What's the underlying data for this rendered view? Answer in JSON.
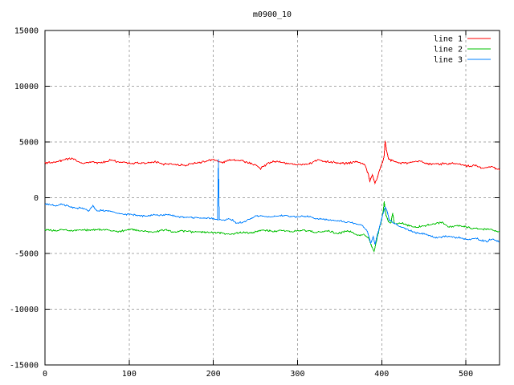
{
  "chart_data": {
    "type": "line",
    "title": "m0900_10",
    "xlabel": "",
    "ylabel": "",
    "xlim": [
      0,
      540
    ],
    "ylim": [
      -15000,
      15000
    ],
    "x_ticks": [
      0,
      100,
      200,
      300,
      400,
      500
    ],
    "y_ticks": [
      -15000,
      -10000,
      -5000,
      0,
      5000,
      10000,
      15000
    ],
    "grid": true,
    "legend_position": "top-right-inside",
    "background": "#ffffff",
    "frame_color": "#000000",
    "grid_color": "#a8a8a8",
    "noise_seed": 900010,
    "series": [
      {
        "name": "line 1",
        "color": "#ff0000",
        "fast_noise": 105,
        "slow_noise": 160,
        "slow_period": 13,
        "keypoints": [
          [
            0,
            3050
          ],
          [
            12,
            3150
          ],
          [
            25,
            3300
          ],
          [
            35,
            3500
          ],
          [
            45,
            3150
          ],
          [
            55,
            3250
          ],
          [
            65,
            3100
          ],
          [
            78,
            3300
          ],
          [
            90,
            3150
          ],
          [
            105,
            3200
          ],
          [
            120,
            3100
          ],
          [
            135,
            3150
          ],
          [
            150,
            3100
          ],
          [
            165,
            3000
          ],
          [
            178,
            3250
          ],
          [
            192,
            3300
          ],
          [
            200,
            3400
          ],
          [
            210,
            3100
          ],
          [
            222,
            3250
          ],
          [
            235,
            3300
          ],
          [
            248,
            2950
          ],
          [
            256,
            2650
          ],
          [
            264,
            3050
          ],
          [
            275,
            3150
          ],
          [
            288,
            3050
          ],
          [
            300,
            2900
          ],
          [
            312,
            3000
          ],
          [
            325,
            3250
          ],
          [
            338,
            3300
          ],
          [
            350,
            3150
          ],
          [
            362,
            3050
          ],
          [
            372,
            3200
          ],
          [
            380,
            3000
          ],
          [
            384,
            2200
          ],
          [
            386,
            1500
          ],
          [
            389,
            2100
          ],
          [
            392,
            1300
          ],
          [
            395,
            1900
          ],
          [
            398,
            2700
          ],
          [
            401,
            3300
          ],
          [
            403,
            3900
          ],
          [
            404,
            5200
          ],
          [
            406,
            4300
          ],
          [
            408,
            3600
          ],
          [
            411,
            3250
          ],
          [
            416,
            3100
          ],
          [
            424,
            2950
          ],
          [
            432,
            3000
          ],
          [
            440,
            3100
          ],
          [
            448,
            3150
          ],
          [
            456,
            2950
          ],
          [
            464,
            3100
          ],
          [
            472,
            3050
          ],
          [
            480,
            2900
          ],
          [
            488,
            3000
          ],
          [
            496,
            2950
          ],
          [
            504,
            2800
          ],
          [
            512,
            2900
          ],
          [
            520,
            2750
          ],
          [
            528,
            2800
          ],
          [
            534,
            2650
          ],
          [
            540,
            2550
          ]
        ]
      },
      {
        "name": "line 2",
        "color": "#00c000",
        "fast_noise": 95,
        "slow_noise": 120,
        "slow_period": 12,
        "keypoints": [
          [
            0,
            -2950
          ],
          [
            15,
            -2850
          ],
          [
            30,
            -2950
          ],
          [
            45,
            -2800
          ],
          [
            60,
            -2900
          ],
          [
            75,
            -2850
          ],
          [
            90,
            -3000
          ],
          [
            105,
            -2900
          ],
          [
            120,
            -3050
          ],
          [
            135,
            -2950
          ],
          [
            150,
            -3000
          ],
          [
            162,
            -2900
          ],
          [
            175,
            -3050
          ],
          [
            190,
            -3000
          ],
          [
            205,
            -3100
          ],
          [
            220,
            -3150
          ],
          [
            232,
            -3050
          ],
          [
            245,
            -3150
          ],
          [
            258,
            -3000
          ],
          [
            270,
            -3100
          ],
          [
            282,
            -3000
          ],
          [
            295,
            -3100
          ],
          [
            308,
            -3000
          ],
          [
            320,
            -3080
          ],
          [
            333,
            -2950
          ],
          [
            346,
            -3100
          ],
          [
            358,
            -3050
          ],
          [
            370,
            -3200
          ],
          [
            379,
            -3350
          ],
          [
            385,
            -3800
          ],
          [
            388,
            -4400
          ],
          [
            391,
            -4950
          ],
          [
            394,
            -3900
          ],
          [
            397,
            -2950
          ],
          [
            400,
            -2100
          ],
          [
            402,
            -1200
          ],
          [
            403,
            -480
          ],
          [
            405,
            -1600
          ],
          [
            408,
            -2250
          ],
          [
            411,
            -2400
          ],
          [
            413,
            -1450
          ],
          [
            415,
            -2400
          ],
          [
            425,
            -2350
          ],
          [
            438,
            -2650
          ],
          [
            452,
            -2500
          ],
          [
            465,
            -2350
          ],
          [
            472,
            -2250
          ],
          [
            480,
            -2650
          ],
          [
            492,
            -2550
          ],
          [
            505,
            -2750
          ],
          [
            518,
            -2900
          ],
          [
            530,
            -2950
          ],
          [
            540,
            -3100
          ]
        ]
      },
      {
        "name": "line 3",
        "color": "#0080ff",
        "fast_noise": 90,
        "slow_noise": 130,
        "slow_period": 13,
        "keypoints": [
          [
            0,
            -650
          ],
          [
            12,
            -850
          ],
          [
            20,
            -700
          ],
          [
            30,
            -950
          ],
          [
            42,
            -850
          ],
          [
            52,
            -1150
          ],
          [
            57,
            -750
          ],
          [
            62,
            -1300
          ],
          [
            75,
            -1150
          ],
          [
            90,
            -1350
          ],
          [
            105,
            -1500
          ],
          [
            120,
            -1600
          ],
          [
            135,
            -1700
          ],
          [
            150,
            -1600
          ],
          [
            165,
            -1800
          ],
          [
            180,
            -1850
          ],
          [
            195,
            -1900
          ],
          [
            203,
            -2000
          ],
          [
            205,
            -2050
          ],
          [
            206,
            3400
          ],
          [
            207,
            -2000
          ],
          [
            210,
            -2100
          ],
          [
            218,
            -1950
          ],
          [
            228,
            -2250
          ],
          [
            238,
            -2050
          ],
          [
            250,
            -1650
          ],
          [
            262,
            -1800
          ],
          [
            275,
            -1650
          ],
          [
            290,
            -1750
          ],
          [
            305,
            -1700
          ],
          [
            320,
            -1850
          ],
          [
            335,
            -1900
          ],
          [
            350,
            -2050
          ],
          [
            365,
            -2250
          ],
          [
            377,
            -2550
          ],
          [
            383,
            -3000
          ],
          [
            387,
            -4100
          ],
          [
            390,
            -3500
          ],
          [
            392,
            -4200
          ],
          [
            395,
            -3200
          ],
          [
            398,
            -2400
          ],
          [
            401,
            -1500
          ],
          [
            404,
            -700
          ],
          [
            406,
            -1000
          ],
          [
            409,
            -1900
          ],
          [
            415,
            -2300
          ],
          [
            425,
            -2750
          ],
          [
            437,
            -3100
          ],
          [
            450,
            -3300
          ],
          [
            463,
            -3600
          ],
          [
            475,
            -3450
          ],
          [
            488,
            -3650
          ],
          [
            500,
            -3800
          ],
          [
            512,
            -3600
          ],
          [
            524,
            -3850
          ],
          [
            532,
            -3700
          ],
          [
            540,
            -4000
          ]
        ]
      }
    ]
  }
}
